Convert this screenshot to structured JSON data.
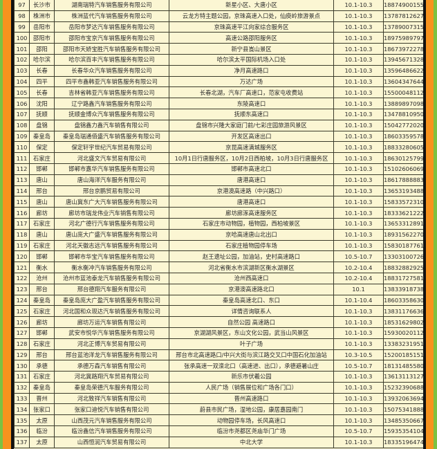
{
  "colors": {
    "outer_green": "#7cc242",
    "frame_orange": "#f7931e",
    "cell_bg": "#fbf6d3"
  },
  "rows": [
    [
      "97",
      "长沙市",
      "湖南瑞特汽车销售服务有限公司",
      "新星小区、大唐小区",
      "10.1-10.3",
      "18874900155"
    ],
    [
      "98",
      "株洲市",
      "株洲蓝代汽车销售服务有限公司",
      "云龙方特主题公园，京珠高速入口处，仙庾岭旅游景点",
      "10.1-10.3",
      "13787812627"
    ],
    [
      "99",
      "岳阳市",
      "岳阳市梦达汽车销售服务有限公司",
      "京珠高速平江向家综合服务区",
      "10.1-10.3",
      "13789007315"
    ],
    [
      "100",
      "邵阳市",
      "邵阳市宝京汽车销售服务有限公司",
      "高速公路邵阳服务区",
      "10.1-10.3",
      "18975989797"
    ],
    [
      "101",
      "邵阳",
      "邵阳市天娇宝胜汽车销售服务有限公司",
      "新宁县崀山景区",
      "10.1-10.3",
      "18673972278"
    ],
    [
      "102",
      "哈尔滨",
      "哈尔滨百丰汽车销售服务有限公司",
      "哈尔滨太平国际机场入口处",
      "10.1-10.3",
      "13945671328"
    ],
    [
      "103",
      "长春",
      "长春华众汽车销售服务有限公司",
      "净月高速路口",
      "10.1-10.3",
      "13596486622"
    ],
    [
      "104",
      "四平",
      "四平市鑫韩亚汽车销售服务有限公司",
      "万达广场",
      "10.1-10.3",
      "13604347644"
    ],
    [
      "105",
      "长春",
      "吉林省韩亚汽车销售服务有限公司",
      "长春北湖，汽车厂高速口，范家屯收费站",
      "10.1-10.3",
      "15500048112"
    ],
    [
      "106",
      "沈阳",
      "辽宁路鑫汽车销售服务有限公司",
      "东陵高速口",
      "10.1-10.3",
      "13889897098"
    ],
    [
      "107",
      "抚顺",
      "抚顺金博众汽车销售服务有限公司",
      "抚顺东高速口",
      "10.1-10.3",
      "13478810950"
    ],
    [
      "108",
      "盘锦",
      "盘锦鑫力鑫汽车销售有限公司",
      "盘锦市兴隆大家庭门前/七彩庄园旅游风景区",
      "10.1-10.3",
      "15042772020"
    ],
    [
      "109",
      "秦皇岛",
      "秦皇岛瑞通佰盛汽车销售服务有限公司",
      "开发区高速出口",
      "10.1-10.3",
      "18603359578"
    ],
    [
      "110",
      "保定",
      "保定轩宇世纪汽车贸易有限公司",
      "京昆高速满城服务区",
      "10.1-10.3",
      "18833280605"
    ],
    [
      "111",
      "石家庄",
      "河北盛文汽车贸易有限公司",
      "10月1日行唐服务区，10月2日西柏坡，10月3日行唐服务区",
      "10.1-10.3",
      "18630125799"
    ],
    [
      "112",
      "邯郸",
      "邯郸市嘉华汽车销售服务有限公司",
      "邯郸市高速北口",
      "10.1-10.3",
      "15102606069"
    ],
    [
      "113",
      "唐山",
      "唐山海洋汽车服务有限公司",
      "唐港高速口",
      "10.1-10.3",
      "18617888883"
    ],
    [
      "114",
      "邢台",
      "邢台京鹏贸易有限公司",
      "京港澳高速路（中兴路口）",
      "10.1-10.3",
      "13653193488"
    ],
    [
      "115",
      "唐山",
      "唐山冀东广大汽车销售服务有限公司",
      "唐港高速口",
      "10.1-10.3",
      "15833572310"
    ],
    [
      "116",
      "廊坊",
      "廊坊市瑞龙伟业汽车销售有限公司",
      "廊坊廊涿高速服务区",
      "10.1-10.3",
      "18333621222"
    ],
    [
      "117",
      "石家庄",
      "河北广德行汽车销售服务有限公司",
      "石家庄市动物园，植物园，西柏坡景区",
      "10.1-10.3",
      "13653312891"
    ],
    [
      "118",
      "唐山",
      "唐山庞大广盛汽车销售服务有限公司",
      "京哈高速唐山北出口",
      "10.1-10.3",
      "18931562270"
    ],
    [
      "119",
      "石家庄",
      "河北天徽志远汽车销售服务有限公司",
      "石家庄植物园停车场",
      "10.1-10.3",
      "15830187761"
    ],
    [
      "120",
      "邯郸",
      "邯郸市华宝汽车销售服务有限公司",
      "赵王遗址公园，加油站，史村高速路口",
      "10.5-10.7",
      "13303100726"
    ],
    [
      "121",
      "衡水",
      "衡水衡冲汽车销售服务有限公司",
      "河北省衡水市滨湖新区衡水湖景区",
      "10.2-10.4",
      "18832882925"
    ],
    [
      "122",
      "沧州",
      "沧州市蓝池泰龙汽车销售服务有限公司",
      "沧州西高速口",
      "10.2-10.4",
      "18831727581"
    ],
    [
      "123",
      "邢台",
      "邢台德翔汽车服务有限公司",
      "京港澳高速路北口",
      "10.1",
      "13833918738"
    ],
    [
      "124",
      "秦皇岛",
      "秦皇岛庞大广盈汽车销售服务有限公司",
      "秦皇岛高速北口、东口",
      "10.1-10.4",
      "18603358630"
    ],
    [
      "125",
      "石家庄",
      "河北国和众现达汽车销售服务有限公司",
      "详情咨询联系人",
      "10.1-10.3",
      "13831176636"
    ],
    [
      "126",
      "廊坊",
      "廊坊万运汽车销售有限公司",
      "自然公园 高速路口",
      "10.1-10.3",
      "18531629802"
    ],
    [
      "127",
      "邯郸",
      "武安市悦华汽车销售服务有限公司",
      "京湖湖风景区，东山文化公园，武当山风景区",
      "10.1-10.3",
      "15930020112"
    ],
    [
      "128",
      "石家庄",
      "河北正博汽车贸易有限公司",
      "叶子广场",
      "10.1-10.3",
      "13383231951"
    ],
    [
      "129",
      "邢台",
      "邢台蓝池洋龙汽车销售服务有限公司",
      "邢台市北高速路口/中兴大街与滨江路交叉口中国石化加油站",
      "10.3-10.5",
      "15200185151"
    ],
    [
      "130",
      "承德",
      "承德万森汽车销售有限公司",
      "张承高速一双滦北口（高速进、出口），承德避暑山庄",
      "10.5-10.7",
      "18131485580"
    ],
    [
      "131",
      "石家庄",
      "河北冀路翔汽车贸易有限公司",
      "新乐市伏羲公园",
      "10.1-10.3",
      "13613113127"
    ],
    [
      "132",
      "秦皇岛",
      "秦皇岛荣德汽车服务有限公司",
      "人民广场（销售展位和广场各门口）",
      "10.1-10.3",
      "15232390688"
    ],
    [
      "133",
      "晋州",
      "河北致祥汽车销售有限公司",
      "晋州高速路口",
      "10.1-10.3",
      "13932063694"
    ],
    [
      "134",
      "张家口",
      "张家口迪悦汽车销售有限公司",
      "蔚县市民广场，湿地公园，康居嘉园南门",
      "10.1-10.3",
      "15075341888"
    ],
    [
      "135",
      "太原",
      "山西茂元汽车销售服务有限公司",
      "动物园停车场，长风高速口",
      "10.1-10.3",
      "13485350667"
    ],
    [
      "136",
      "临汾",
      "临汾鑫信汽车销售服务有限公司",
      "临汾市尧都区尧庙华门广场",
      "10.5-10.7",
      "15935354104"
    ],
    [
      "137",
      "太原",
      "山西恒润汽车贸易有限公司",
      "中北大学",
      "10.1-10.3",
      "18335196474"
    ]
  ]
}
